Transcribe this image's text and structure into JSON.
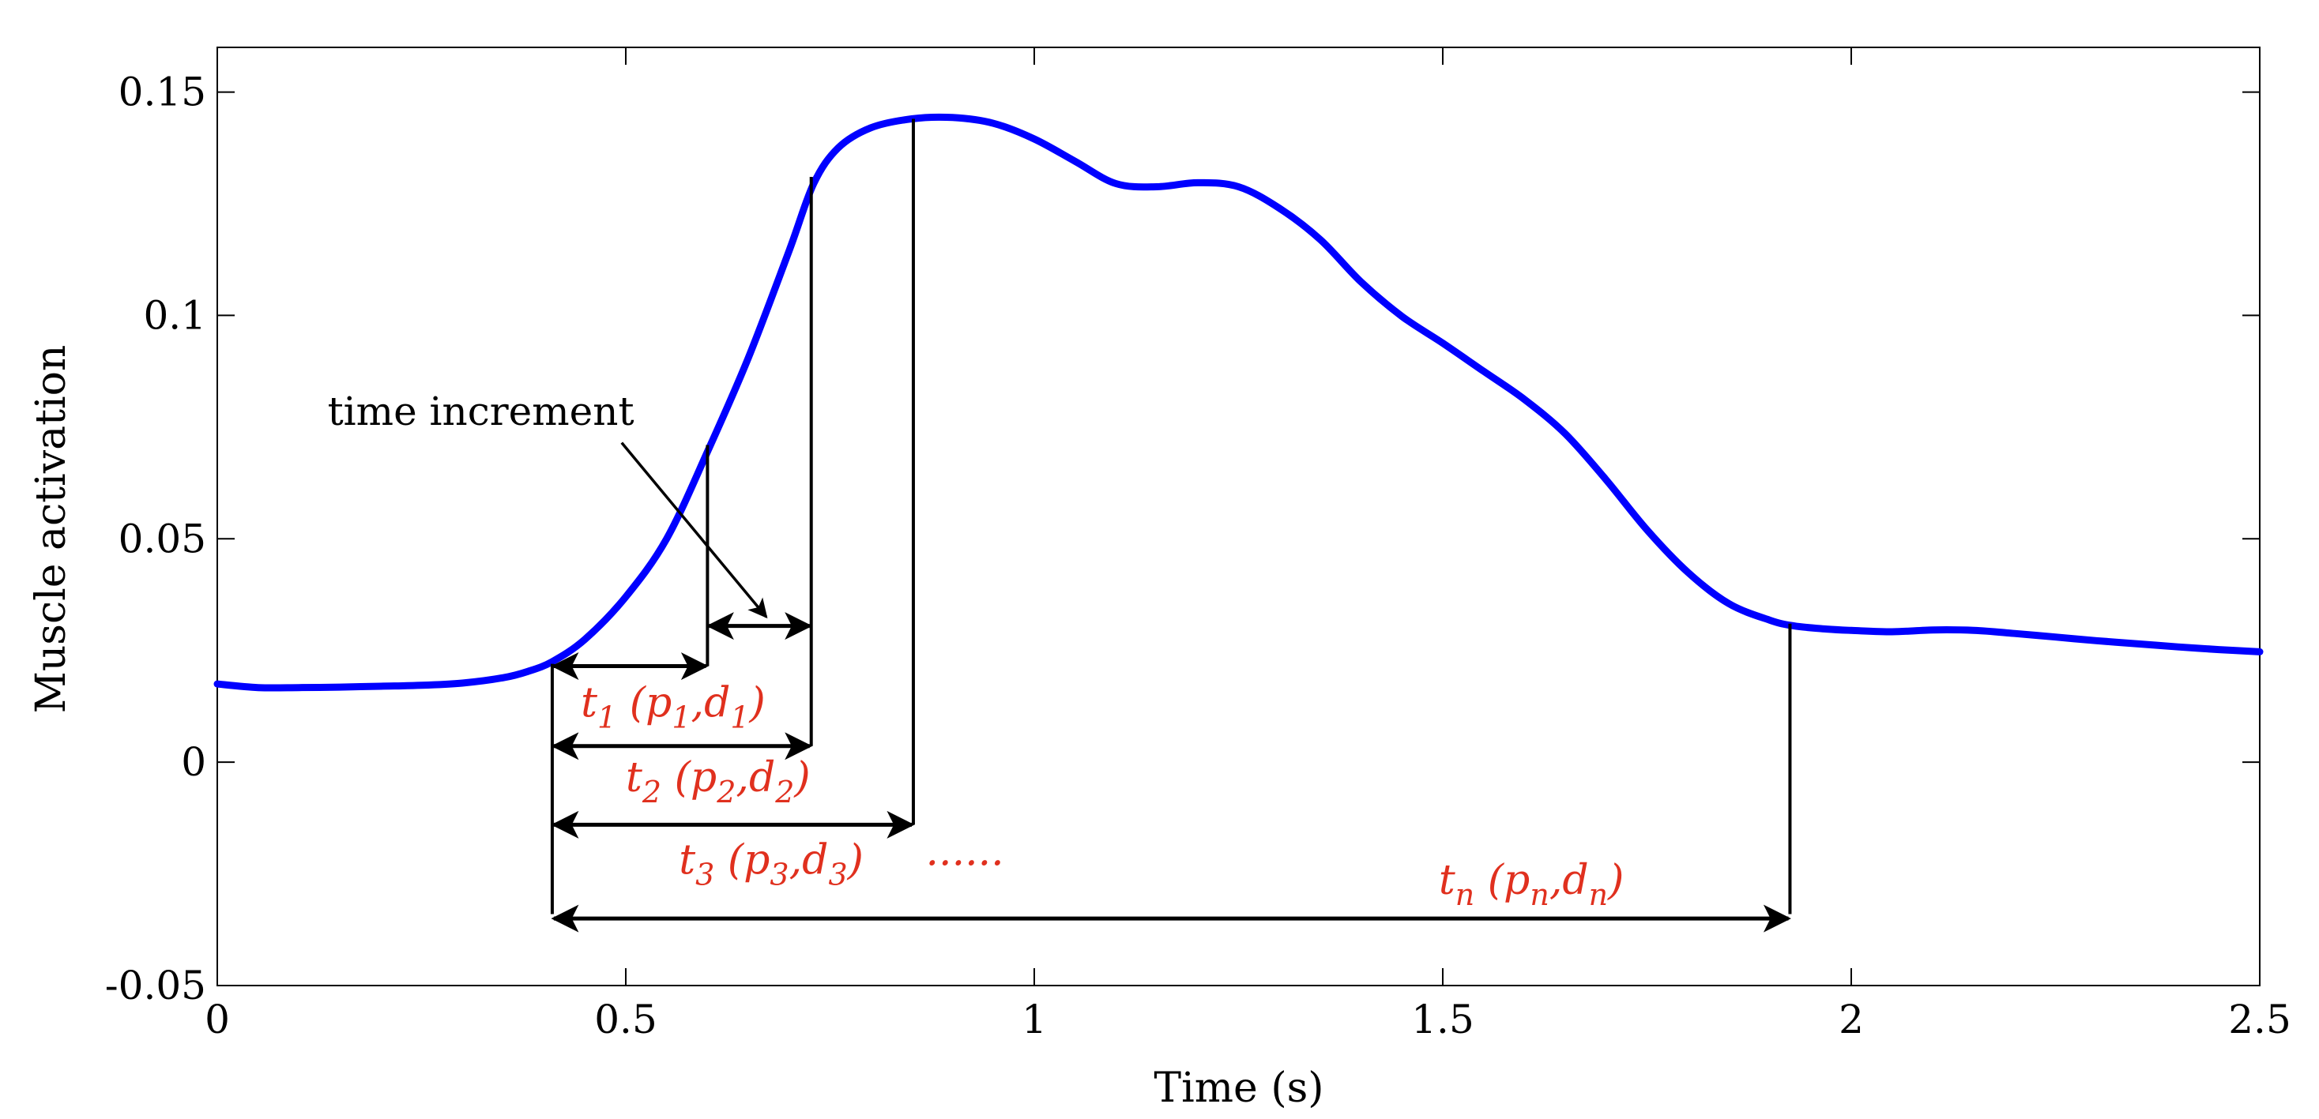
{
  "chart_data": {
    "type": "line",
    "title": "",
    "xlabel": "Time (s)",
    "ylabel": "Muscle activation",
    "xlim": [
      0,
      2.5
    ],
    "ylim": [
      -0.05,
      0.16
    ],
    "xticks": [
      0,
      0.5,
      1,
      1.5,
      2,
      2.5
    ],
    "xtick_labels": [
      "0",
      "0.5",
      "1",
      "1.5",
      "2",
      "2.5"
    ],
    "yticks": [
      -0.05,
      0,
      0.05,
      0.1,
      0.15
    ],
    "ytick_labels": [
      "-0.05",
      "0",
      "0.05",
      "0.1",
      "0.15"
    ],
    "grid": false,
    "series": [
      {
        "name": "muscle activation",
        "color": "#0000ff",
        "x": [
          0,
          0.05,
          0.1,
          0.15,
          0.2,
          0.25,
          0.3,
          0.35,
          0.38,
          0.41,
          0.45,
          0.5,
          0.55,
          0.6,
          0.65,
          0.7,
          0.73,
          0.76,
          0.8,
          0.85,
          0.9,
          0.95,
          1.0,
          1.05,
          1.1,
          1.15,
          1.2,
          1.25,
          1.3,
          1.35,
          1.4,
          1.45,
          1.5,
          1.55,
          1.6,
          1.65,
          1.7,
          1.75,
          1.8,
          1.85,
          1.9,
          1.93,
          1.97,
          2.0,
          2.05,
          2.1,
          2.15,
          2.2,
          2.25,
          2.3,
          2.35,
          2.4,
          2.45,
          2.5
        ],
        "y": [
          0.0175,
          0.0167,
          0.0167,
          0.0168,
          0.017,
          0.0172,
          0.0177,
          0.0189,
          0.0203,
          0.0225,
          0.0275,
          0.037,
          0.05,
          0.0695,
          0.0905,
          0.1145,
          0.1295,
          0.1375,
          0.142,
          0.144,
          0.1443,
          0.143,
          0.1395,
          0.1345,
          0.1295,
          0.1288,
          0.1297,
          0.1288,
          0.124,
          0.117,
          0.1075,
          0.0998,
          0.0938,
          0.0875,
          0.0812,
          0.0735,
          0.0632,
          0.052,
          0.0425,
          0.0355,
          0.0318,
          0.0305,
          0.0298,
          0.0295,
          0.0292,
          0.0296,
          0.0295,
          0.0288,
          0.028,
          0.0272,
          0.0265,
          0.0258,
          0.0252,
          0.0247
        ]
      }
    ],
    "annotations": {
      "time_increment_label": "time increment",
      "ellipsis": "......",
      "onset_time": 0.41,
      "vertical_markers": [
        {
          "x": 0.41,
          "y_top": 0.022,
          "y_bottom": -0.034
        },
        {
          "x": 0.6,
          "y_top": 0.071,
          "y_bottom": 0.0215
        },
        {
          "x": 0.727,
          "y_top": 0.131,
          "y_bottom": 0.0036
        },
        {
          "x": 0.852,
          "y_top": 0.144,
          "y_bottom": -0.014
        },
        {
          "x": 1.925,
          "y_top": 0.031,
          "y_bottom": -0.034
        }
      ],
      "arrows": [
        {
          "x1": 0.41,
          "x2": 0.6,
          "y": 0.0215
        },
        {
          "x1": 0.6,
          "x2": 0.727,
          "y": 0.0305
        },
        {
          "x1": 0.41,
          "x2": 0.727,
          "y": 0.0036
        },
        {
          "x1": 0.41,
          "x2": 0.852,
          "y": -0.014
        },
        {
          "x1": 0.41,
          "x2": 1.925,
          "y": -0.035
        }
      ],
      "pointer_arrow": {
        "x1": 0.495,
        "y1": 0.0715,
        "x2": 0.672,
        "y2": 0.0325
      },
      "intervals": [
        {
          "t": "t",
          "t_sub": "1",
          "p": "p",
          "p_sub": "1",
          "d": "d",
          "d_sub": "1",
          "x": 0.445,
          "y": 0.0102
        },
        {
          "t": "t",
          "t_sub": "2",
          "p": "p",
          "p_sub": "2",
          "d": "d",
          "d_sub": "2",
          "x": 0.5,
          "y": -0.0065
        },
        {
          "t": "t",
          "t_sub": "3",
          "p": "p",
          "p_sub": "3",
          "d": "d",
          "d_sub": "3",
          "x": 0.565,
          "y": -0.025
        },
        {
          "t": "t",
          "t_sub": "n",
          "p": "p",
          "p_sub": "n",
          "d": "d",
          "d_sub": "n",
          "x": 1.495,
          "y": -0.0295
        }
      ]
    },
    "colors": {
      "series": "#0000ff",
      "annotation_text": "#e0301e",
      "axes": "#000000"
    }
  }
}
